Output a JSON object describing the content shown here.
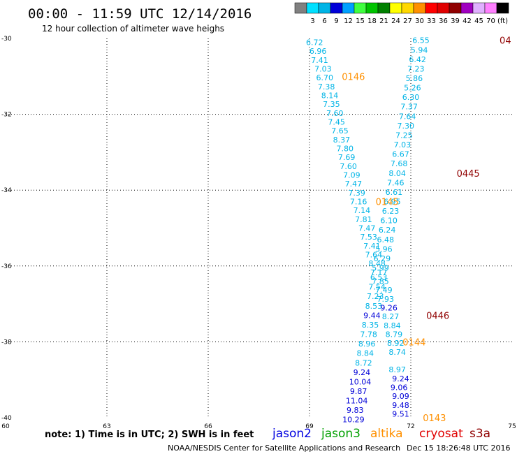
{
  "header": {
    "title": "00:00 - 11:59 UTC 12/14/2016",
    "subtitle": "12 hour collection of altimeter wave heighs"
  },
  "colorbar": {
    "unit": "(ft)",
    "bins": [
      {
        "color": "#808080",
        "label": ""
      },
      {
        "color": "#00e0ff",
        "label": "3"
      },
      {
        "color": "#00b4e6",
        "label": "6"
      },
      {
        "color": "#0000d8",
        "label": "9"
      },
      {
        "color": "#00a0ff",
        "label": "12"
      },
      {
        "color": "#40ff40",
        "label": "15"
      },
      {
        "color": "#00c400",
        "label": "18"
      },
      {
        "color": "#008000",
        "label": "21"
      },
      {
        "color": "#ffff00",
        "label": "24"
      },
      {
        "color": "#ffd800",
        "label": "27"
      },
      {
        "color": "#ff9000",
        "label": "30"
      },
      {
        "color": "#ff0000",
        "label": "33"
      },
      {
        "color": "#e00000",
        "label": "36"
      },
      {
        "color": "#900000",
        "label": "39"
      },
      {
        "color": "#a000c0",
        "label": "42"
      },
      {
        "color": "#e0b0ff",
        "label": "45"
      },
      {
        "color": "#ff80ff",
        "label": "70"
      },
      {
        "color": "#000000",
        "label": ""
      }
    ]
  },
  "footer": {
    "note": "note: 1) Time is in UTC; 2) SWH is in feet",
    "credit": "NOAA/NESDIS Center for Satellite Applications and Research",
    "timestamp": "Dec 15 18:26:48 UTC 2016",
    "satellites": [
      {
        "name": "jason2",
        "color": "#0000e0"
      },
      {
        "name": "jason3",
        "color": "#00a000"
      },
      {
        "name": "altika",
        "color": "#ff9000"
      },
      {
        "name": "cryosat",
        "color": "#e00000"
      },
      {
        "name": "s3a",
        "color": "#900000"
      }
    ]
  },
  "chart_data": {
    "type": "scatter",
    "xlim": [
      60,
      75
    ],
    "ylim": [
      -40,
      -30
    ],
    "xticks": [
      "60",
      "63",
      "66",
      "69",
      "72",
      "75"
    ],
    "yticks": [
      "-30",
      "-32",
      "-34",
      "-36",
      "-38",
      "-40"
    ],
    "grid": true,
    "series": [
      {
        "color": "#00b4e6",
        "points": [
          {
            "x": 69.15,
            "y": -30.1,
            "label": "6.72"
          },
          {
            "x": 69.25,
            "y": -30.33,
            "label": "6.96"
          },
          {
            "x": 69.3,
            "y": -30.57,
            "label": "7.41"
          },
          {
            "x": 69.4,
            "y": -30.8,
            "label": "7.03"
          },
          {
            "x": 69.45,
            "y": -31.03,
            "label": "6.70"
          },
          {
            "x": 69.5,
            "y": -31.27,
            "label": "7.38"
          },
          {
            "x": 69.6,
            "y": -31.5,
            "label": "8.14"
          },
          {
            "x": 69.65,
            "y": -31.73,
            "label": "7.35"
          },
          {
            "x": 69.75,
            "y": -31.97,
            "label": "7.60"
          },
          {
            "x": 69.8,
            "y": -32.2,
            "label": "7.45"
          },
          {
            "x": 69.9,
            "y": -32.43,
            "label": "7.65"
          },
          {
            "x": 69.95,
            "y": -32.67,
            "label": "8.37"
          },
          {
            "x": 70.05,
            "y": -32.9,
            "label": "7.80"
          },
          {
            "x": 70.1,
            "y": -33.13,
            "label": "7.69"
          },
          {
            "x": 70.15,
            "y": -33.37,
            "label": "7.60"
          },
          {
            "x": 70.25,
            "y": -33.6,
            "label": "7.09"
          },
          {
            "x": 70.3,
            "y": -33.83,
            "label": "7.47"
          },
          {
            "x": 70.4,
            "y": -34.07,
            "label": "7.39"
          },
          {
            "x": 70.45,
            "y": -34.3,
            "label": "7.16"
          },
          {
            "x": 70.55,
            "y": -34.53,
            "label": "7.14"
          },
          {
            "x": 70.6,
            "y": -34.77,
            "label": "7.81"
          },
          {
            "x": 70.7,
            "y": -35.0,
            "label": "7.47"
          },
          {
            "x": 70.75,
            "y": -35.23,
            "label": "7.53"
          },
          {
            "x": 70.85,
            "y": -35.47,
            "label": "7.41"
          },
          {
            "x": 70.9,
            "y": -35.7,
            "label": "7.64"
          },
          {
            "x": 71.0,
            "y": -35.93,
            "label": "8.48"
          },
          {
            "x": 71.05,
            "y": -36.17,
            "label": "7.17"
          },
          {
            "x": 71.1,
            "y": -36.4,
            "label": "7.85"
          },
          {
            "x": 71.2,
            "y": -36.63,
            "label": "7.49"
          },
          {
            "x": 71.25,
            "y": -36.87,
            "label": "7.93"
          },
          {
            "x": 71.4,
            "y": -37.33,
            "label": "8.27"
          },
          {
            "x": 71.45,
            "y": -37.57,
            "label": "8.84"
          },
          {
            "x": 71.5,
            "y": -37.8,
            "label": "8.79"
          },
          {
            "x": 71.55,
            "y": -38.03,
            "label": "8.92"
          },
          {
            "x": 71.6,
            "y": -38.27,
            "label": "8.74"
          },
          {
            "x": 71.6,
            "y": -38.73,
            "label": "8.97"
          },
          {
            "x": 72.3,
            "y": -30.05,
            "label": "6.55"
          },
          {
            "x": 72.25,
            "y": -30.3,
            "label": "5.94"
          },
          {
            "x": 72.2,
            "y": -30.55,
            "label": "6.42"
          },
          {
            "x": 72.15,
            "y": -30.8,
            "label": "7.23"
          },
          {
            "x": 72.1,
            "y": -31.05,
            "label": "5.86"
          },
          {
            "x": 72.05,
            "y": -31.3,
            "label": "5.26"
          },
          {
            "x": 72.0,
            "y": -31.55,
            "label": "6.30"
          },
          {
            "x": 71.95,
            "y": -31.8,
            "label": "7.37"
          },
          {
            "x": 71.9,
            "y": -32.05,
            "label": "7.64"
          },
          {
            "x": 71.85,
            "y": -32.3,
            "label": "7.30"
          },
          {
            "x": 71.8,
            "y": -32.55,
            "label": "7.25"
          },
          {
            "x": 71.75,
            "y": -32.8,
            "label": "7.03"
          },
          {
            "x": 71.7,
            "y": -33.05,
            "label": "6.67"
          },
          {
            "x": 71.65,
            "y": -33.3,
            "label": "7.68"
          },
          {
            "x": 71.6,
            "y": -33.55,
            "label": "8.04"
          },
          {
            "x": 71.55,
            "y": -33.8,
            "label": "7.46"
          },
          {
            "x": 71.5,
            "y": -34.05,
            "label": "6.61"
          },
          {
            "x": 71.45,
            "y": -34.3,
            "label": "6.95"
          },
          {
            "x": 71.4,
            "y": -34.55,
            "label": "6.23"
          },
          {
            "x": 71.35,
            "y": -34.8,
            "label": "6.10"
          },
          {
            "x": 71.3,
            "y": -35.05,
            "label": "6.24"
          },
          {
            "x": 71.25,
            "y": -35.3,
            "label": "6.48"
          },
          {
            "x": 71.2,
            "y": -35.55,
            "label": "5.96"
          },
          {
            "x": 71.15,
            "y": -35.8,
            "label": "6.29"
          },
          {
            "x": 71.1,
            "y": -36.05,
            "label": "5.99"
          },
          {
            "x": 71.05,
            "y": -36.3,
            "label": "6.53"
          },
          {
            "x": 71.0,
            "y": -36.55,
            "label": "7.54"
          },
          {
            "x": 70.95,
            "y": -36.8,
            "label": "7.23"
          },
          {
            "x": 70.9,
            "y": -37.05,
            "label": "8.53"
          },
          {
            "x": 70.8,
            "y": -37.55,
            "label": "8.35"
          },
          {
            "x": 70.75,
            "y": -37.8,
            "label": "7.78"
          },
          {
            "x": 70.7,
            "y": -38.05,
            "label": "8.96"
          },
          {
            "x": 70.65,
            "y": -38.3,
            "label": "8.84"
          },
          {
            "x": 70.6,
            "y": -38.55,
            "label": "8.72"
          }
        ]
      },
      {
        "color": "#0000d8",
        "points": [
          {
            "x": 71.35,
            "y": -37.1,
            "label": "9.26"
          },
          {
            "x": 71.7,
            "y": -38.97,
            "label": "9.24"
          },
          {
            "x": 71.65,
            "y": -39.2,
            "label": "9.06"
          },
          {
            "x": 71.7,
            "y": -39.43,
            "label": "9.09"
          },
          {
            "x": 71.7,
            "y": -39.67,
            "label": "9.48"
          },
          {
            "x": 71.7,
            "y": -39.9,
            "label": "9.51"
          },
          {
            "x": 70.85,
            "y": -37.3,
            "label": "9.44"
          },
          {
            "x": 70.55,
            "y": -38.8,
            "label": "9.24"
          },
          {
            "x": 70.5,
            "y": -39.05,
            "label": "10.04"
          },
          {
            "x": 70.45,
            "y": -39.3,
            "label": "9.87"
          },
          {
            "x": 70.4,
            "y": -39.55,
            "label": "11.04"
          },
          {
            "x": 70.35,
            "y": -39.8,
            "label": "9.83"
          },
          {
            "x": 70.3,
            "y": -40.05,
            "label": "10.29"
          }
        ]
      }
    ],
    "pass_labels": [
      {
        "text": "0146",
        "x": 70.3,
        "y": -31.0,
        "color": "#ff9000"
      },
      {
        "text": "0145",
        "x": 71.3,
        "y": -34.3,
        "color": "#ff9000"
      },
      {
        "text": "0144",
        "x": 72.1,
        "y": -38.0,
        "color": "#ff9000"
      },
      {
        "text": "0143",
        "x": 72.7,
        "y": -40.0,
        "color": "#ff9000"
      },
      {
        "text": "04",
        "x": 74.8,
        "y": -30.05,
        "color": "#900000"
      },
      {
        "text": "0445",
        "x": 73.7,
        "y": -33.55,
        "color": "#900000"
      },
      {
        "text": "0446",
        "x": 72.8,
        "y": -37.3,
        "color": "#900000"
      }
    ]
  }
}
